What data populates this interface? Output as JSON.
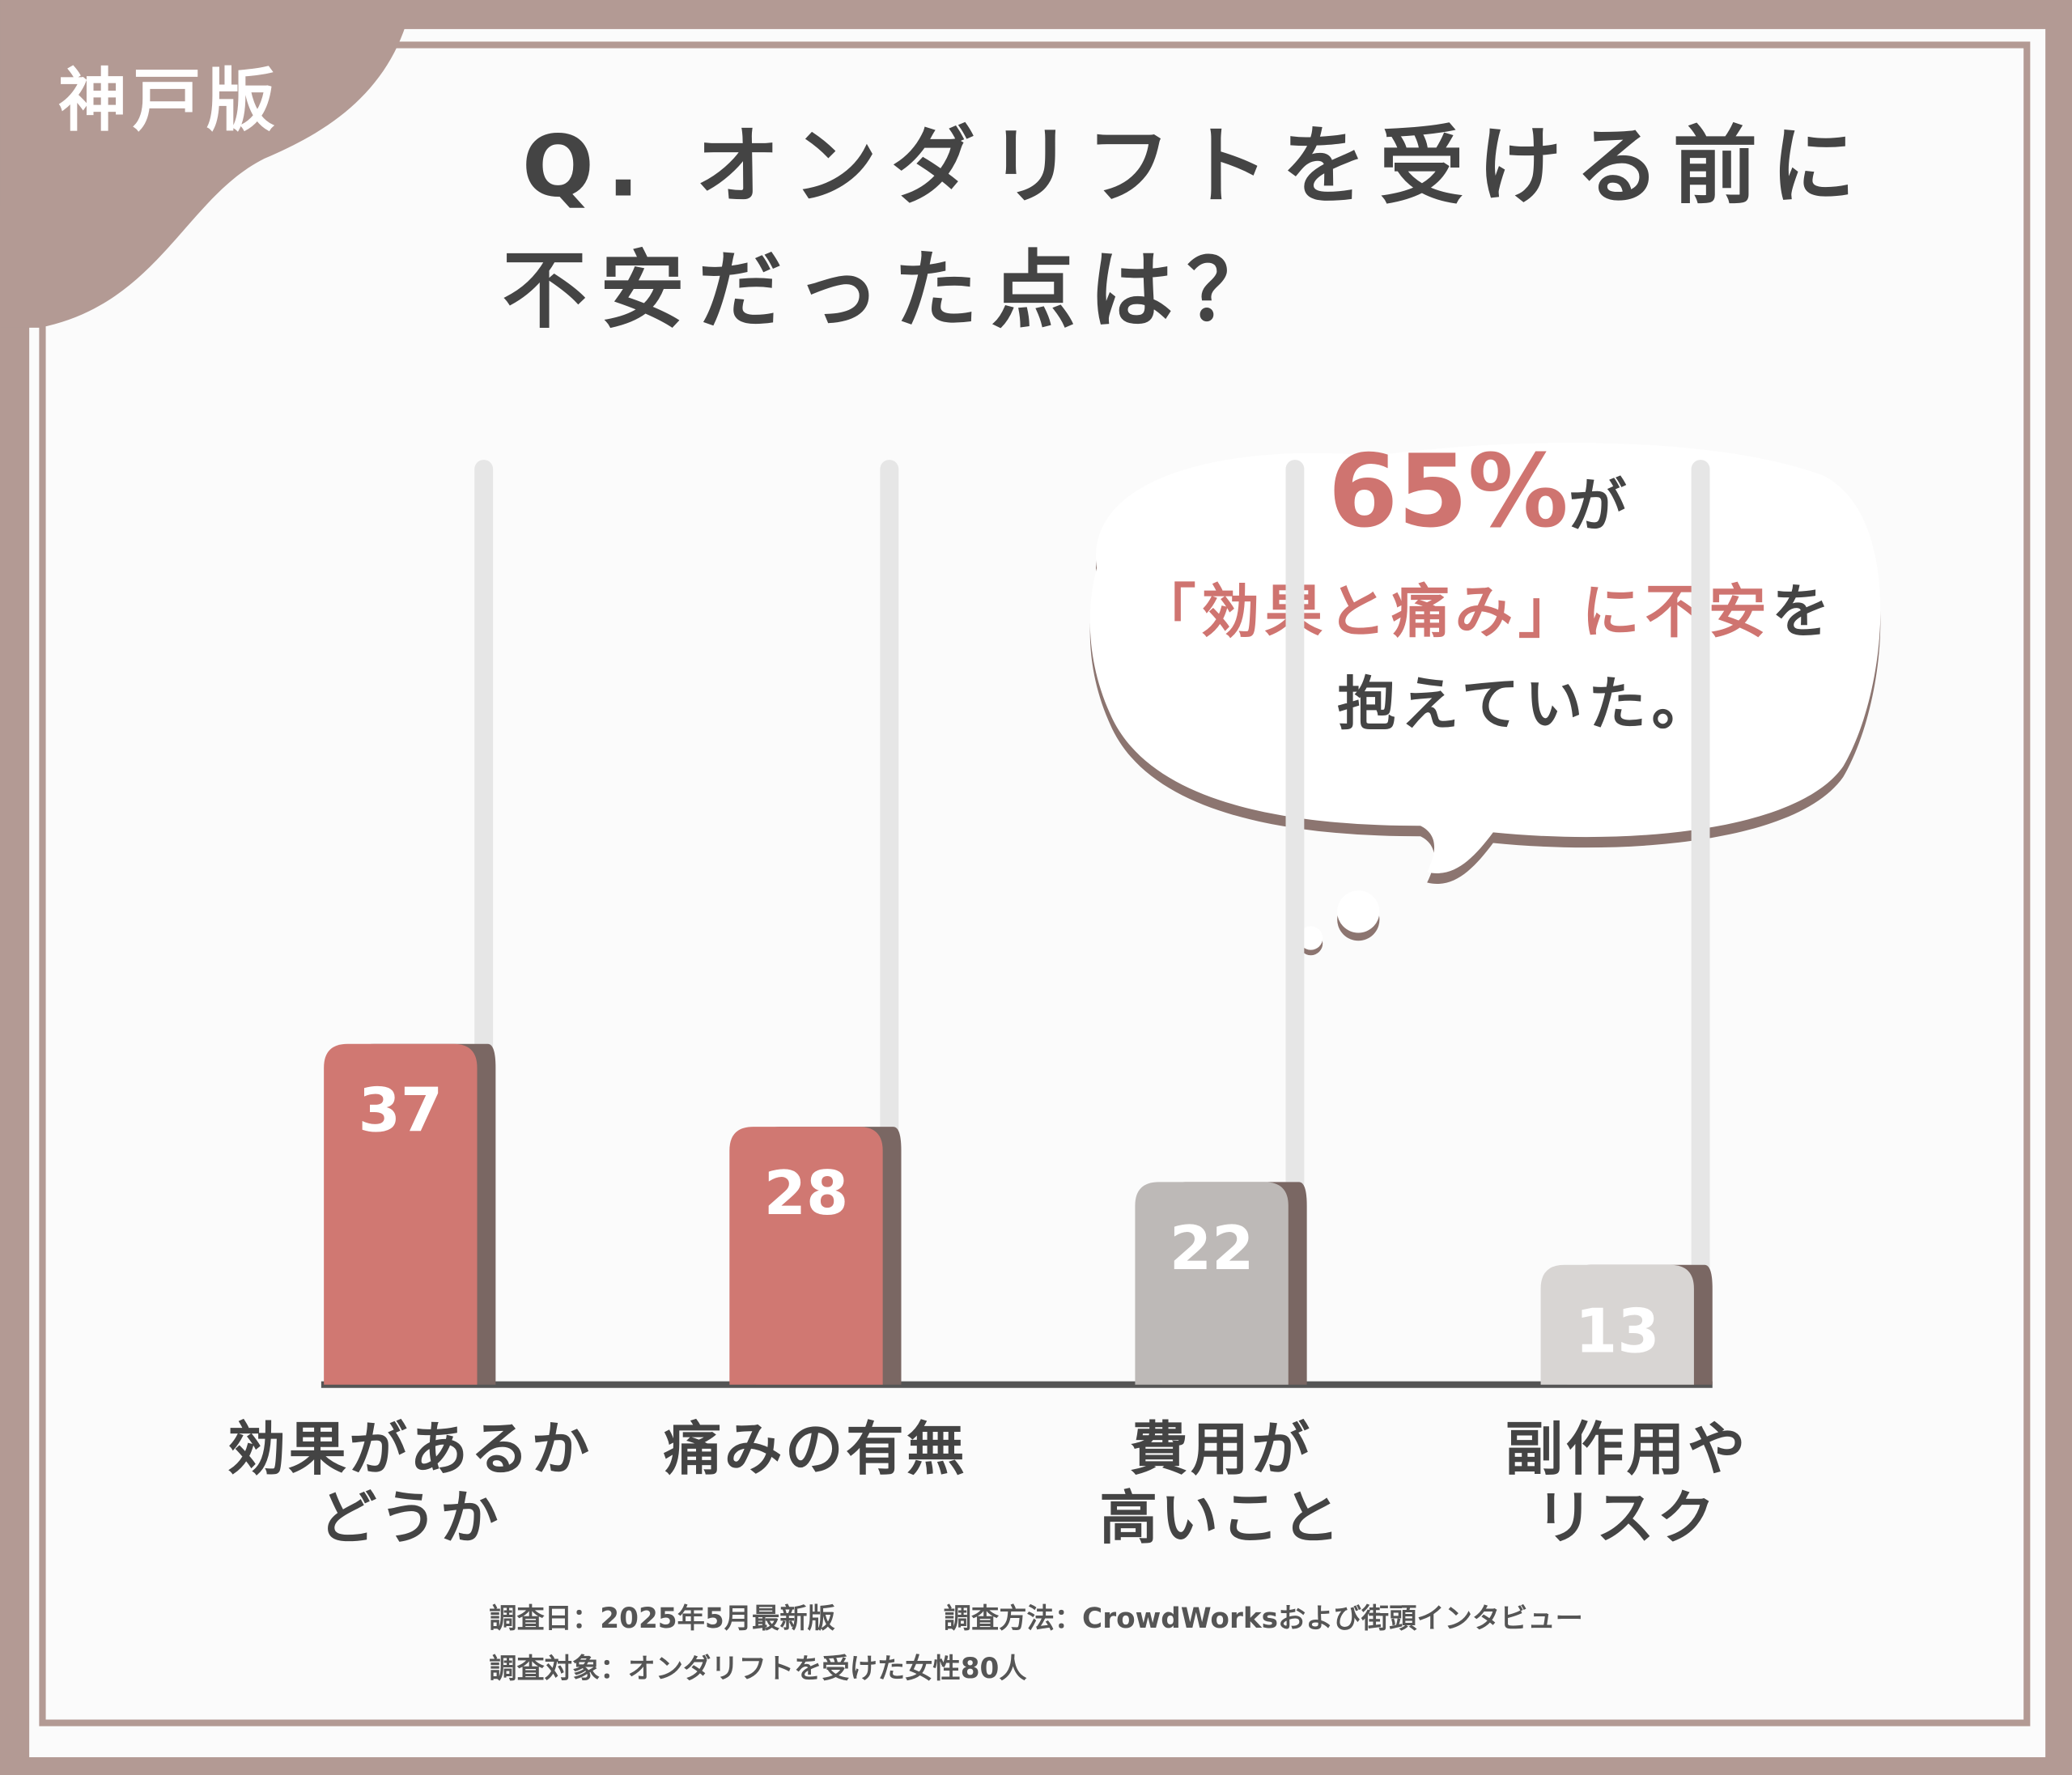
{
  "badge": "神戸版",
  "chart_data": {
    "type": "bar",
    "title": "Q. オンダリフトを受ける前に\n不安だった点は？",
    "categories": [
      "効果があるか\nどうか",
      "痛みの有無",
      "費用が\n高いこと",
      "副作用や\nリスク"
    ],
    "values": [
      37,
      28,
      22,
      13
    ],
    "colors": [
      "#d07872",
      "#d07872",
      "#bdb9b7",
      "#d8d5d3"
    ],
    "annotation": {
      "highlight_color": "#cf7470",
      "lines": [
        [
          {
            "text": "65%",
            "highlight": true,
            "big": true
          },
          {
            "text": "が"
          }
        ],
        [
          {
            "text": "「効果と痛み」に不安",
            "highlight": true
          },
          {
            "text": "を"
          }
        ],
        [
          {
            "text": "抱えていた。"
          }
        ]
      ]
    }
  },
  "footnotes": [
    "調査日：2025年5月最新版",
    "調査方法：CrowdWorksおよび街頭インタビュー",
    "調査対象：オンダリフトを受けた女性80人"
  ]
}
